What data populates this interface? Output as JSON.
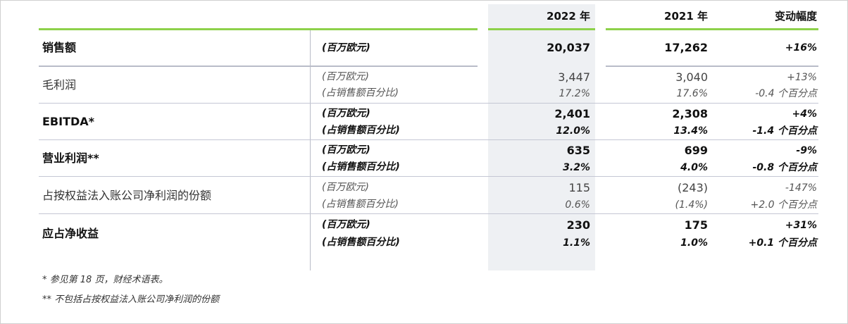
{
  "header": {
    "y2022": "2022 年",
    "y2021": "2021 年",
    "change": "变动幅度"
  },
  "rows": [
    {
      "label": "销售额",
      "bold": true,
      "lines": [
        {
          "unit": "(百万欧元)",
          "v2022": "20,037",
          "v2021": "17,262",
          "change": "+16%"
        }
      ]
    },
    {
      "label": "毛利润",
      "bold": false,
      "lines": [
        {
          "unit": "(百万欧元)",
          "v2022": "3,447",
          "v2021": "3,040",
          "change": "+13%"
        },
        {
          "unit": "(占销售额百分比)",
          "v2022": "17.2%",
          "v2021": "17.6%",
          "change": "-0.4 个百分点"
        }
      ]
    },
    {
      "label": "EBITDA*",
      "bold": true,
      "lines": [
        {
          "unit": "(百万欧元)",
          "v2022": "2,401",
          "v2021": "2,308",
          "change": "+4%"
        },
        {
          "unit": "(占销售额百分比)",
          "v2022": "12.0%",
          "v2021": "13.4%",
          "change": "-1.4 个百分点"
        }
      ]
    },
    {
      "label": "营业利润**",
      "bold": true,
      "lines": [
        {
          "unit": "(百万欧元)",
          "v2022": "635",
          "v2021": "699",
          "change": "-9%"
        },
        {
          "unit": "(占销售额百分比)",
          "v2022": "3.2%",
          "v2021": "4.0%",
          "change": "-0.8 个百分点"
        }
      ]
    },
    {
      "label": "占按权益法入账公司净利润的份额",
      "bold": false,
      "lines": [
        {
          "unit": "(百万欧元)",
          "v2022": "115",
          "v2021": "(243)",
          "change": "-147%"
        },
        {
          "unit": "(占销售额百分比)",
          "v2022": "0.6%",
          "v2021": "(1.4%)",
          "change": "+2.0 个百分点"
        }
      ]
    },
    {
      "label": "应占净收益",
      "bold": true,
      "lines": [
        {
          "unit": "(百万欧元)",
          "v2022": "230",
          "v2021": "175",
          "change": "+31%"
        },
        {
          "unit": "(占销售额百分比)",
          "v2022": "1.1%",
          "v2021": "1.0%",
          "change": "+0.1 个百分点"
        }
      ]
    }
  ],
  "footnotes": [
    "* 参见第 18 页，财经术语表。",
    "** 不包括占按权益法入账公司净利润的份额"
  ]
}
